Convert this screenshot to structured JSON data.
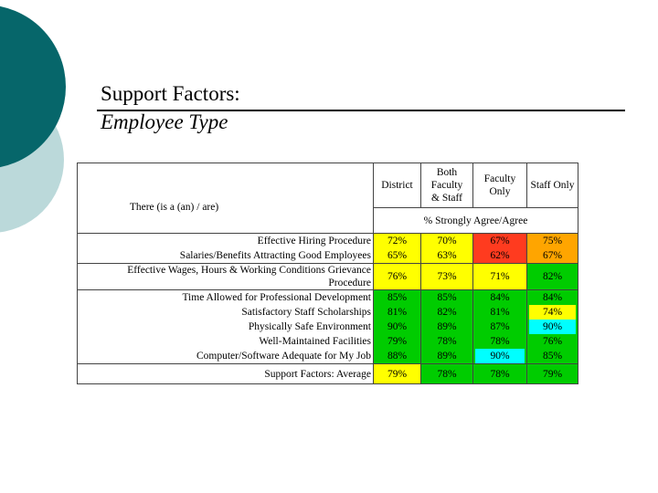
{
  "title": {
    "line1": "Support Factors:",
    "line2": "Employee Type"
  },
  "table": {
    "corner_label": "There (is a (an) / are)",
    "columns": [
      "District",
      "Both Faculty & Staff",
      "Faculty Only",
      "Staff Only"
    ],
    "subheader": "% Strongly Agree/Agree",
    "rows": [
      {
        "label": "Effective Hiring Procedure",
        "values": [
          "72%",
          "70%",
          "67%",
          "75%"
        ]
      },
      {
        "label": "Salaries/Benefits Attracting Good Employees",
        "values": [
          "65%",
          "63%",
          "62%",
          "67%"
        ]
      },
      {
        "label": "Effective Wages, Hours & Working Conditions Grievance Procedure",
        "values": [
          "76%",
          "73%",
          "71%",
          "82%"
        ]
      },
      {
        "label": "Time Allowed for Professional Development",
        "values": [
          "85%",
          "85%",
          "84%",
          "84%"
        ]
      },
      {
        "label": "Satisfactory Staff Scholarships",
        "values": [
          "81%",
          "82%",
          "81%",
          "74%"
        ]
      },
      {
        "label": "Physically Safe Environment",
        "values": [
          "90%",
          "89%",
          "87%",
          "90%"
        ]
      },
      {
        "label": "Well-Maintained Facilities",
        "values": [
          "79%",
          "78%",
          "78%",
          "76%"
        ]
      },
      {
        "label": "Computer/Software Adequate for My Job",
        "values": [
          "88%",
          "89%",
          "90%",
          "85%"
        ]
      }
    ],
    "average": {
      "label": "Support Factors: Average",
      "values": [
        "79%",
        "78%",
        "78%",
        "79%"
      ]
    }
  },
  "colors": {
    "deco_dark": "#06666A",
    "deco_light": "#BBD9DA",
    "yellow": "#FFFF00",
    "orange": "#FFA500",
    "red": "#FF3B1F",
    "green": "#00CC00",
    "cyan": "#00FFFF"
  }
}
